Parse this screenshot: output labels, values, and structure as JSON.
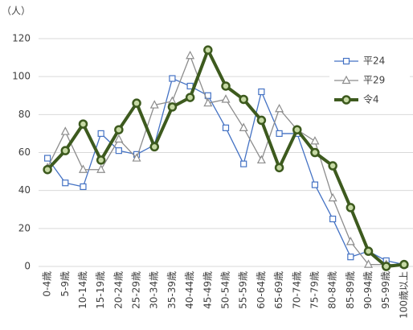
{
  "chart_data": {
    "type": "line",
    "unit_label": "（人）",
    "categories": [
      "0-4歳",
      "5-9歳",
      "10-14歳",
      "15-19歳",
      "20-24歳",
      "25-29歳",
      "30-34歳",
      "35-39歳",
      "40-44歳",
      "45-49歳",
      "50-54歳",
      "55-59歳",
      "60-64歳",
      "65-69歳",
      "70-74歳",
      "75-79歳",
      "80-84歳",
      "85-89歳",
      "90-94歳",
      "95-99歳",
      "100歳以上"
    ],
    "series": [
      {
        "name": "平24",
        "color": "#4472c4",
        "marker": "square",
        "values": [
          57,
          44,
          42,
          70,
          61,
          59,
          64,
          99,
          95,
          90,
          73,
          54,
          92,
          70,
          70,
          43,
          25,
          5,
          8,
          3,
          1
        ]
      },
      {
        "name": "平29",
        "color": "#8c8c8c",
        "marker": "triangle",
        "values": [
          52,
          71,
          51,
          51,
          67,
          57,
          85,
          87,
          111,
          86,
          88,
          73,
          56,
          83,
          72,
          66,
          36,
          13,
          1,
          1,
          1
        ]
      },
      {
        "name": "令4",
        "color": "#3d5a1e",
        "marker": "circle",
        "values": [
          51,
          61,
          75,
          56,
          72,
          86,
          63,
          84,
          89,
          114,
          95,
          88,
          77,
          52,
          72,
          60,
          53,
          31,
          8,
          0,
          1
        ]
      }
    ],
    "ylim": [
      0,
      120
    ],
    "yticks": [
      0,
      20,
      40,
      60,
      80,
      100,
      120
    ],
    "grid": true,
    "legend": "top-right"
  }
}
